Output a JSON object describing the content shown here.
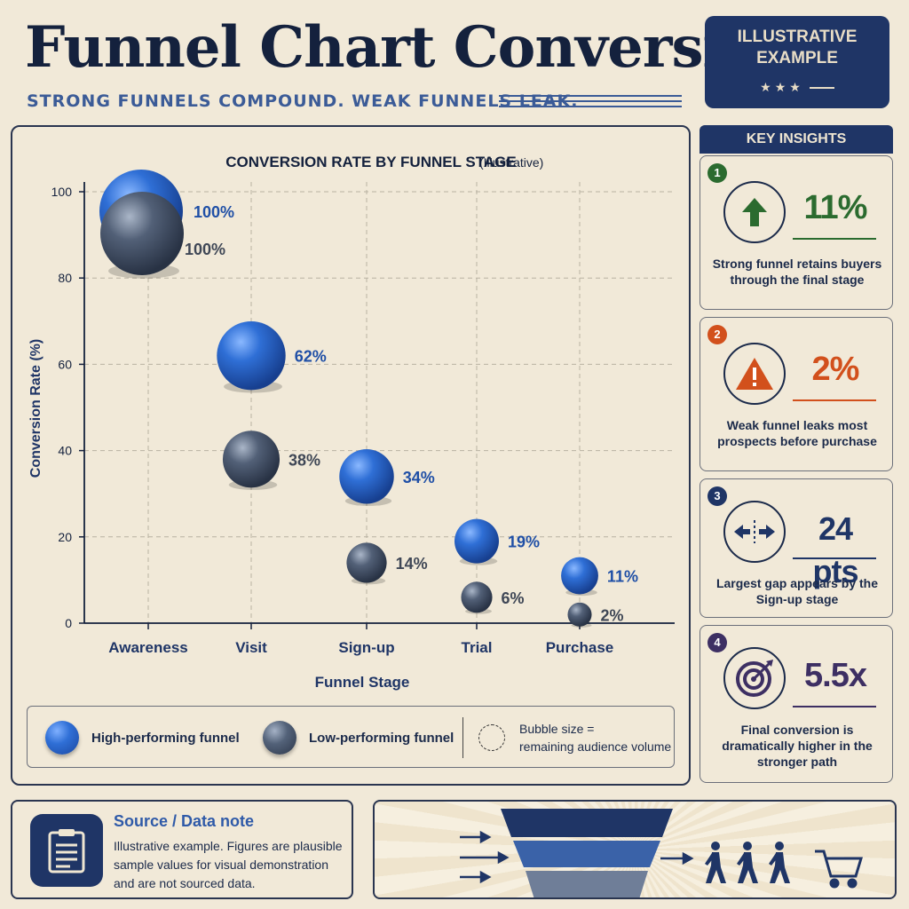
{
  "header": {
    "title": "Funnel Chart Conversion",
    "subtitle": "STRONG FUNNELS COMPOUND. WEAK FUNNELS LEAK.",
    "badge_line1": "ILLUSTRATIVE",
    "badge_line2": "EXAMPLE",
    "badge_stars": "★★★"
  },
  "chart_data": {
    "type": "scatter",
    "title": "CONVERSION RATE BY FUNNEL STAGE",
    "title_note": "(Illustrative)",
    "xlabel": "Funnel Stage",
    "ylabel": "Conversion Rate (%)",
    "ylim": [
      0,
      100
    ],
    "yticks": [
      0,
      20,
      40,
      60,
      80,
      100
    ],
    "categories": [
      "Awareness",
      "Visit",
      "Sign-up",
      "Trial",
      "Purchase"
    ],
    "grid": true,
    "series": [
      {
        "name": "High-performing funnel",
        "color": "#2f6fd6",
        "values": [
          100,
          62,
          34,
          19,
          11
        ],
        "labels": [
          "100%",
          "62%",
          "34%",
          "19%",
          "11%"
        ]
      },
      {
        "name": "Low-performing funnel",
        "color": "#4a576d",
        "values": [
          100,
          38,
          14,
          6,
          2
        ],
        "labels": [
          "100%",
          "38%",
          "14%",
          "6%",
          "2%"
        ]
      }
    ],
    "bubble_size_note": "Bubble size = remaining audience volume"
  },
  "legend": {
    "high": "High-performing funnel",
    "low": "Low-performing funnel",
    "size_line1": "Bubble size =",
    "size_line2": "remaining audience volume"
  },
  "insights": {
    "header": "KEY INSIGHTS",
    "cards": [
      {
        "num": "1",
        "stat": "11%",
        "desc": "Strong funnel retains buyers through the final stage",
        "color": "#2b6b2f",
        "icon": "up-arrow-icon"
      },
      {
        "num": "2",
        "stat": "2%",
        "desc": "Weak funnel leaks most prospects before purchase",
        "color": "#d2501c",
        "icon": "warning-icon"
      },
      {
        "num": "3",
        "stat": "24 pts",
        "desc": "Largest gap appears by the Sign-up stage",
        "color": "#1f3566",
        "icon": "gap-arrows-icon"
      },
      {
        "num": "4",
        "stat": "5.5x",
        "desc": "Final conversion is dramatically higher in the stronger path",
        "color": "#3d2f63",
        "icon": "target-icon"
      }
    ]
  },
  "source": {
    "title": "Source / Data note",
    "text": "Illustrative example. Figures are plausible sample values for visual demonstration and are not sourced data."
  }
}
